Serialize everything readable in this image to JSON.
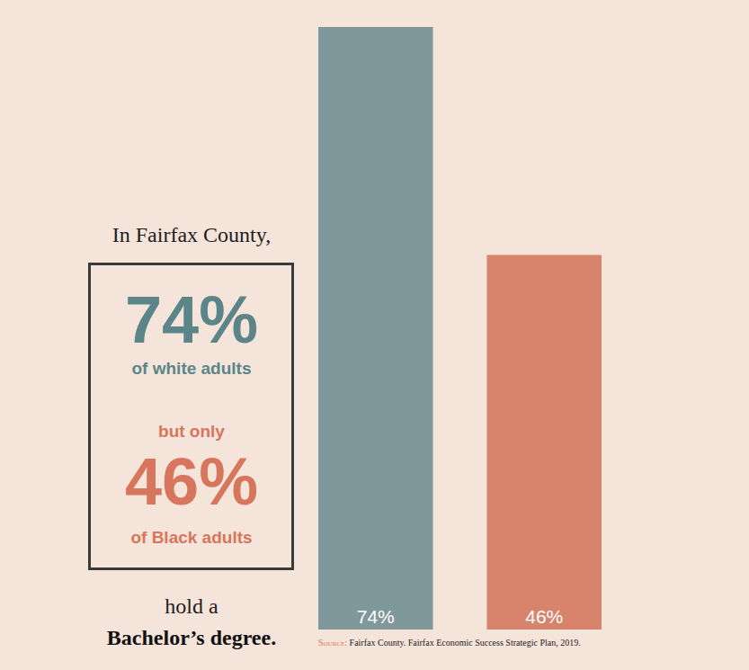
{
  "chart_data": {
    "type": "bar",
    "title": "In Fairfax County,",
    "categories": [
      null,
      null
    ],
    "values": [
      74,
      46
    ],
    "value_labels": [
      "74%",
      "46%"
    ],
    "colors": [
      "#7f989c",
      "#d8846c"
    ],
    "ylim": [
      0,
      74
    ],
    "yticks": [],
    "grid": false,
    "data_labels": true,
    "tick_labels": false,
    "annotations": [
      "of white adults",
      "but only",
      "of Black adults",
      "hold a",
      "Bachelor’s degree.",
      "Source: Fairfax County. Fairfax Economic Success Strategic Plan, 2019."
    ]
  }
}
